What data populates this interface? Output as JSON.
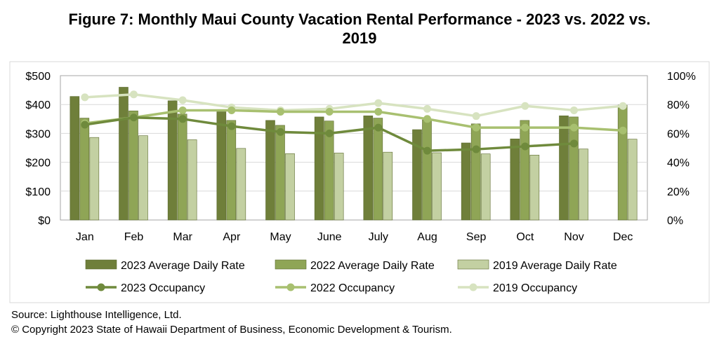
{
  "title_line1": "Figure 7: Monthly Maui County Vacation Rental Performance - 2023 vs. 2022 vs.",
  "title_line2": "2019",
  "source": "Source: Lighthouse Intelligence, Ltd.",
  "copyright": "© Copyright 2023 State of Hawaii Department of Business, Economic Development & Tourism.",
  "chart_data": {
    "type": "bar",
    "categories": [
      "Jan",
      "Feb",
      "Mar",
      "Apr",
      "May",
      "June",
      "July",
      "Aug",
      "Sep",
      "Oct",
      "Nov",
      "Dec"
    ],
    "y_left": {
      "min": 0,
      "max": 500,
      "step": 100,
      "ticks": [
        "$0",
        "$100",
        "$200",
        "$300",
        "$400",
        "$500"
      ]
    },
    "y_right": {
      "min": 0,
      "max": 100,
      "step": 20,
      "ticks": [
        "0%",
        "20%",
        "40%",
        "60%",
        "80%",
        "100%"
      ]
    },
    "grid": true,
    "legend_position": "bottom",
    "bar_series": [
      {
        "name": "2023 Average Daily Rate",
        "color": "#6f7f3a",
        "values": [
          428,
          460,
          413,
          375,
          345,
          357,
          361,
          313,
          267,
          281,
          361,
          null
        ]
      },
      {
        "name": "2022 Average Daily Rate",
        "color": "#8fa556",
        "values": [
          353,
          378,
          367,
          345,
          328,
          343,
          353,
          347,
          333,
          345,
          357,
          398
        ]
      },
      {
        "name": "2019 Average Daily Rate",
        "color": "#c3d0a2",
        "values": [
          286,
          292,
          278,
          248,
          230,
          232,
          235,
          233,
          229,
          225,
          246,
          280
        ]
      }
    ],
    "line_series": [
      {
        "name": "2023 Occupancy",
        "color": "#6f8a3c",
        "values": [
          66,
          71,
          70,
          65,
          61,
          60,
          64,
          48,
          49,
          51,
          53,
          null
        ]
      },
      {
        "name": "2022 Occupancy",
        "color": "#a8c070",
        "values": [
          67,
          71,
          76,
          76,
          75,
          75,
          75,
          70,
          64,
          64,
          64,
          62
        ]
      },
      {
        "name": "2019 Occupancy",
        "color": "#d7e3c0",
        "values": [
          85,
          87,
          83,
          78,
          76,
          77,
          81,
          77,
          72,
          79,
          76,
          79
        ]
      }
    ]
  }
}
